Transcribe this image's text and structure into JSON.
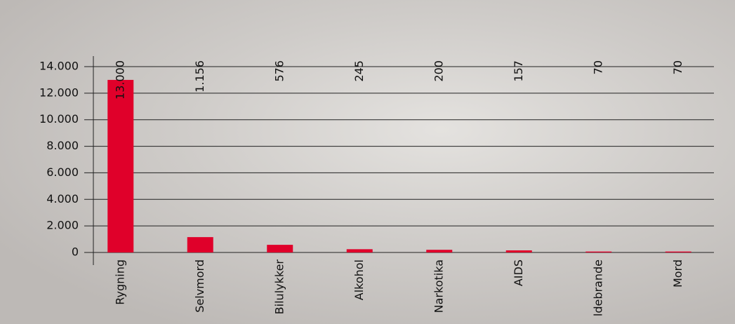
{
  "chart_data": {
    "type": "bar",
    "categories": [
      "Rygning",
      "Selvmord",
      "Bilulykker",
      "Alkohol",
      "Narkotika",
      "AIDS",
      "ldebrande",
      "Mord"
    ],
    "values": [
      13000,
      1156,
      576,
      245,
      200,
      157,
      70,
      70
    ],
    "value_labels": [
      "13.000",
      "1.156",
      "576",
      "245",
      "200",
      "157",
      "70",
      "70"
    ],
    "color": "#e0002a",
    "ylim": [
      0,
      14000
    ],
    "yticks": [
      0,
      {
        "value": 2000,
        "label": "2.000"
      },
      {
        "value": 4000,
        "label": "4.000"
      },
      {
        "value": 6000,
        "label": "6.000"
      },
      {
        "value": 8000,
        "label": "8.000"
      },
      {
        "value": 10000,
        "label": "10.000"
      },
      {
        "value": 12000,
        "label": "12.000"
      },
      {
        "value": 14000,
        "label": "14.000"
      }
    ],
    "grid": true
  }
}
